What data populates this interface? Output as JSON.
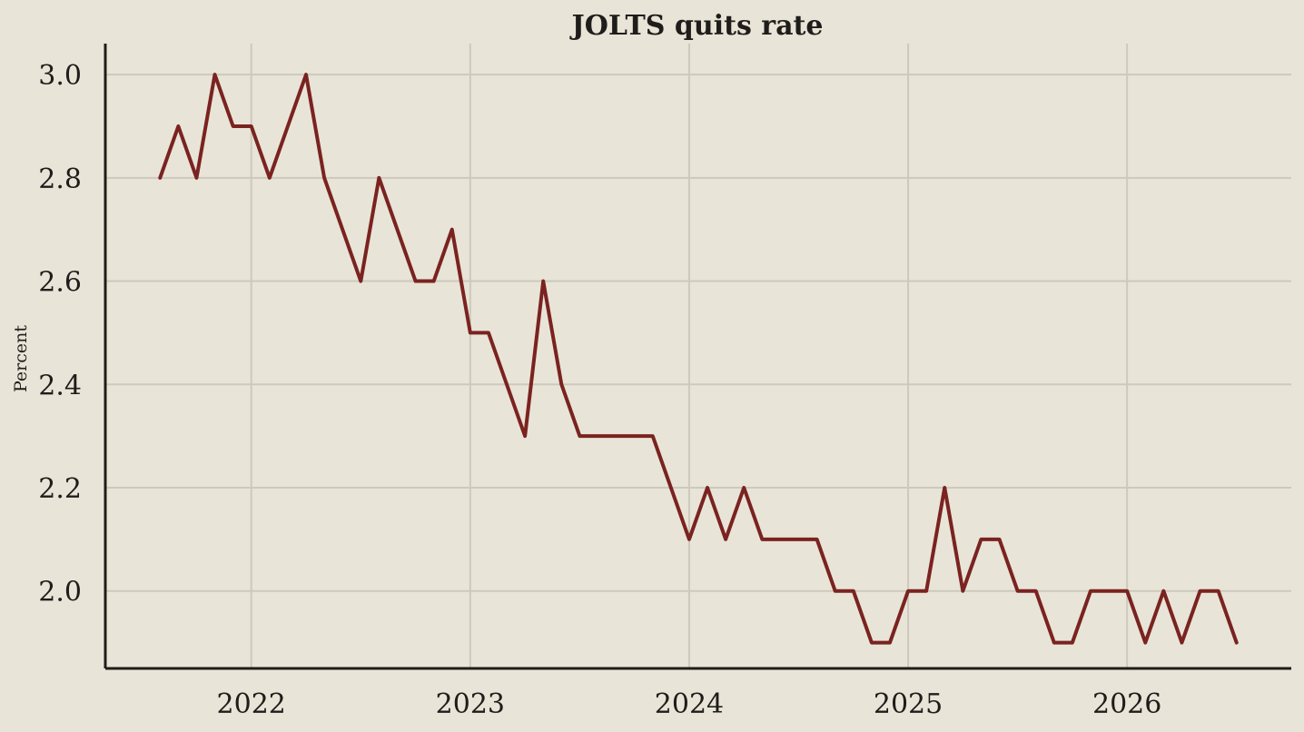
{
  "chart_data": {
    "type": "line",
    "title": "JOLTS quits rate",
    "xlabel": "",
    "ylabel": "Percent",
    "grid": true,
    "line_color": "#7a2320",
    "x_ticks": [
      "2022",
      "2023",
      "2024",
      "2025",
      "2026"
    ],
    "y_ticks": [
      "2.0",
      "2.2",
      "2.4",
      "2.6",
      "2.8",
      "3.0"
    ],
    "ylim": [
      1.85,
      3.06
    ],
    "xlim": [
      "2021-05",
      "2026-10"
    ],
    "x": [
      "2021-08",
      "2021-09",
      "2021-10",
      "2021-11",
      "2021-12",
      "2022-01",
      "2022-02",
      "2022-03",
      "2022-04",
      "2022-05",
      "2022-06",
      "2022-07",
      "2022-08",
      "2022-09",
      "2022-10",
      "2022-11",
      "2022-12",
      "2023-01",
      "2023-02",
      "2023-03",
      "2023-04",
      "2023-05",
      "2023-06",
      "2023-07",
      "2023-08",
      "2023-09",
      "2023-10",
      "2023-11",
      "2023-12",
      "2024-01",
      "2024-02",
      "2024-03",
      "2024-04",
      "2024-05",
      "2024-06",
      "2024-07",
      "2024-08",
      "2024-09",
      "2024-10",
      "2024-11",
      "2024-12",
      "2025-01",
      "2025-02",
      "2025-03",
      "2025-04",
      "2025-05",
      "2025-06",
      "2025-07",
      "2025-08",
      "2025-09",
      "2025-10",
      "2025-11",
      "2025-12",
      "2026-01",
      "2026-02",
      "2026-03",
      "2026-04",
      "2026-05",
      "2026-06",
      "2026-07"
    ],
    "values": [
      2.8,
      2.9,
      2.8,
      3.0,
      2.9,
      2.9,
      2.8,
      2.9,
      3.0,
      2.8,
      2.7,
      2.6,
      2.8,
      2.7,
      2.6,
      2.6,
      2.7,
      2.5,
      2.5,
      2.4,
      2.3,
      2.6,
      2.4,
      2.3,
      2.3,
      2.3,
      2.3,
      2.3,
      2.2,
      2.1,
      2.2,
      2.1,
      2.2,
      2.1,
      2.1,
      2.1,
      2.1,
      2.0,
      2.0,
      1.9,
      1.9,
      2.0,
      2.0,
      2.2,
      2.0,
      2.1,
      2.1,
      2.0,
      2.0,
      1.9,
      1.9,
      2.0,
      2.0,
      2.0,
      1.9,
      2.0,
      1.9,
      2.0,
      2.0,
      1.9
    ]
  }
}
